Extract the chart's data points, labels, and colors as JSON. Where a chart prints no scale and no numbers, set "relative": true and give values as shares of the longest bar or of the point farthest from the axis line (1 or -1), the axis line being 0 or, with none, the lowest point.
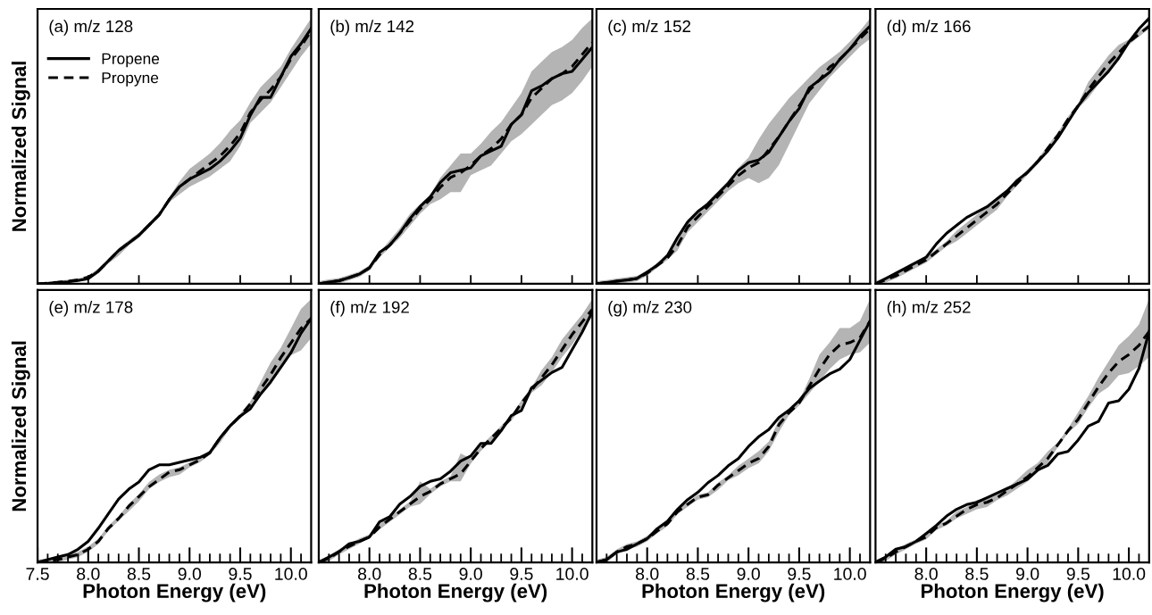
{
  "chart_data": [
    {
      "type": "line",
      "title": "(a) m/z 128",
      "ylabel": "Normalized Signal",
      "relative": true,
      "legend": "top left",
      "tick_labels": false,
      "x": [
        7.5,
        7.6,
        7.7,
        7.8,
        7.9,
        8.0,
        8.1,
        8.2,
        8.3,
        8.4,
        8.5,
        8.6,
        8.7,
        8.8,
        8.9,
        9.0,
        9.1,
        9.2,
        9.3,
        9.4,
        9.5,
        9.6,
        9.7,
        9.8,
        9.9,
        10.0,
        10.1,
        10.2
      ],
      "xlim": [
        7.5,
        10.2
      ],
      "xticks": [
        {
          "value": 8,
          "label": null
        },
        {
          "value": 8.5,
          "label": null
        },
        {
          "value": 9,
          "label": null
        },
        {
          "value": 9.5,
          "label": null
        },
        {
          "value": 10,
          "label": null
        }
      ],
      "series": [
        {
          "name": "Propene",
          "color": "#000000",
          "line_style": "solid",
          "values": [
            0,
            0.002,
            0.005,
            0.008,
            0.013,
            0.02,
            0.05,
            0.09,
            0.13,
            0.16,
            0.19,
            0.23,
            0.27,
            0.33,
            0.38,
            0.41,
            0.43,
            0.45,
            0.48,
            0.52,
            0.57,
            0.66,
            0.73,
            0.73,
            0.81,
            0.89,
            0.94,
            1.0
          ]
        },
        {
          "name": "Propyne",
          "color": "#000000",
          "line_style": "dashed",
          "values": [
            0,
            0.003,
            0.006,
            0.01,
            0.016,
            0.026,
            0.05,
            0.09,
            0.13,
            0.16,
            0.19,
            0.23,
            0.27,
            0.33,
            0.38,
            0.41,
            0.44,
            0.47,
            0.5,
            0.54,
            0.59,
            0.67,
            0.72,
            0.76,
            0.81,
            0.88,
            0.93,
            0.99
          ],
          "lower": [
            0,
            0,
            0.001,
            0.005,
            0.01,
            0.016,
            0.04,
            0.08,
            0.11,
            0.15,
            0.18,
            0.22,
            0.26,
            0.32,
            0.35,
            0.38,
            0.4,
            0.42,
            0.45,
            0.48,
            0.54,
            0.63,
            0.67,
            0.71,
            0.77,
            0.83,
            0.89,
            0.94
          ],
          "upper": [
            0.005,
            0.008,
            0.013,
            0.016,
            0.021,
            0.031,
            0.06,
            0.1,
            0.14,
            0.17,
            0.2,
            0.24,
            0.28,
            0.34,
            0.4,
            0.45,
            0.48,
            0.51,
            0.55,
            0.6,
            0.64,
            0.71,
            0.77,
            0.81,
            0.85,
            0.92,
            0.98,
            1.04
          ]
        }
      ]
    },
    {
      "type": "line",
      "title": "(b) m/z 142",
      "relative": true,
      "tick_labels": false,
      "x": [
        7.5,
        7.6,
        7.7,
        7.8,
        7.9,
        8.0,
        8.1,
        8.2,
        8.3,
        8.4,
        8.5,
        8.6,
        8.7,
        8.8,
        8.9,
        9.0,
        9.1,
        9.2,
        9.3,
        9.4,
        9.5,
        9.6,
        9.7,
        9.8,
        9.9,
        10.0,
        10.1,
        10.2
      ],
      "xlim": [
        7.5,
        10.2
      ],
      "xticks": [
        {
          "value": 8,
          "label": null
        },
        {
          "value": 8.5,
          "label": null
        },
        {
          "value": 9,
          "label": null
        },
        {
          "value": 9.5,
          "label": null
        },
        {
          "value": 10,
          "label": null
        }
      ],
      "series": [
        {
          "color": "#000000",
          "line_style": "solid",
          "values": [
            0,
            0.007,
            0.013,
            0.026,
            0.04,
            0.066,
            0.13,
            0.16,
            0.21,
            0.27,
            0.32,
            0.36,
            0.42,
            0.46,
            0.47,
            0.48,
            0.53,
            0.55,
            0.57,
            0.66,
            0.7,
            0.8,
            0.82,
            0.85,
            0.87,
            0.88,
            0.93,
            0.98
          ]
        },
        {
          "color": "#000000",
          "line_style": "dashed",
          "values": [
            0,
            0.007,
            0.013,
            0.026,
            0.04,
            0.066,
            0.12,
            0.16,
            0.21,
            0.26,
            0.31,
            0.35,
            0.4,
            0.44,
            0.46,
            0.49,
            0.53,
            0.56,
            0.6,
            0.66,
            0.7,
            0.77,
            0.81,
            0.85,
            0.87,
            0.9,
            0.95,
            1.0
          ],
          "lower": [
            0,
            0,
            0.002,
            0.015,
            0.029,
            0.055,
            0.11,
            0.15,
            0.19,
            0.24,
            0.29,
            0.33,
            0.35,
            0.38,
            0.38,
            0.45,
            0.47,
            0.49,
            0.54,
            0.59,
            0.62,
            0.66,
            0.7,
            0.74,
            0.76,
            0.79,
            0.84,
            0.9
          ],
          "upper": [
            0.011,
            0.018,
            0.024,
            0.037,
            0.051,
            0.077,
            0.13,
            0.18,
            0.23,
            0.29,
            0.33,
            0.37,
            0.44,
            0.49,
            0.54,
            0.54,
            0.58,
            0.63,
            0.67,
            0.73,
            0.79,
            0.88,
            0.92,
            0.96,
            0.98,
            1.01,
            1.06,
            1.1
          ]
        }
      ]
    },
    {
      "type": "line",
      "title": "(c) m/z 152",
      "relative": true,
      "tick_labels": false,
      "x": [
        7.5,
        7.6,
        7.7,
        7.8,
        7.9,
        8.0,
        8.1,
        8.2,
        8.3,
        8.4,
        8.5,
        8.6,
        8.7,
        8.8,
        8.9,
        9.0,
        9.1,
        9.2,
        9.3,
        9.4,
        9.5,
        9.6,
        9.7,
        9.8,
        9.9,
        10.0,
        10.1,
        10.2
      ],
      "xlim": [
        7.5,
        10.2
      ],
      "xticks": [
        {
          "value": 8,
          "label": null
        },
        {
          "value": 8.5,
          "label": null
        },
        {
          "value": 9,
          "label": null
        },
        {
          "value": 9.5,
          "label": null
        },
        {
          "value": 10,
          "label": null
        }
      ],
      "series": [
        {
          "color": "#000000",
          "line_style": "solid",
          "values": [
            0,
            0.005,
            0.01,
            0.015,
            0.021,
            0.046,
            0.072,
            0.11,
            0.18,
            0.24,
            0.28,
            0.31,
            0.35,
            0.39,
            0.44,
            0.47,
            0.48,
            0.51,
            0.57,
            0.63,
            0.68,
            0.76,
            0.79,
            0.82,
            0.87,
            0.91,
            0.96,
            1.0
          ]
        },
        {
          "color": "#000000",
          "line_style": "dashed",
          "values": [
            0,
            0.005,
            0.01,
            0.015,
            0.021,
            0.041,
            0.072,
            0.1,
            0.15,
            0.22,
            0.26,
            0.3,
            0.34,
            0.38,
            0.42,
            0.45,
            0.47,
            0.52,
            0.57,
            0.63,
            0.69,
            0.75,
            0.79,
            0.84,
            0.87,
            0.91,
            0.95,
            0.99
          ],
          "lower": [
            0,
            0,
            0,
            0.005,
            0.01,
            0.031,
            0.062,
            0.093,
            0.13,
            0.2,
            0.24,
            0.28,
            0.32,
            0.36,
            0.39,
            0.41,
            0.39,
            0.41,
            0.46,
            0.54,
            0.62,
            0.7,
            0.75,
            0.8,
            0.84,
            0.88,
            0.92,
            0.95
          ],
          "upper": [
            0.01,
            0.015,
            0.021,
            0.026,
            0.031,
            0.052,
            0.082,
            0.11,
            0.18,
            0.24,
            0.28,
            0.32,
            0.36,
            0.4,
            0.45,
            0.49,
            0.56,
            0.62,
            0.67,
            0.72,
            0.76,
            0.8,
            0.84,
            0.87,
            0.9,
            0.94,
            0.98,
            1.03
          ]
        }
      ]
    },
    {
      "type": "line",
      "title": "(d) m/z 166",
      "relative": true,
      "tick_labels": false,
      "x": [
        7.5,
        7.6,
        7.7,
        7.8,
        7.9,
        8.0,
        8.1,
        8.2,
        8.3,
        8.4,
        8.5,
        8.6,
        8.7,
        8.8,
        8.9,
        9.0,
        9.1,
        9.2,
        9.3,
        9.4,
        9.5,
        9.6,
        9.7,
        9.8,
        9.9,
        10.0,
        10.1,
        10.2
      ],
      "xlim": [
        7.5,
        10.2
      ],
      "xticks": [
        {
          "value": 8,
          "label": null
        },
        {
          "value": 8.5,
          "label": null
        },
        {
          "value": 9,
          "label": null
        },
        {
          "value": 9.5,
          "label": null
        },
        {
          "value": 10,
          "label": null
        }
      ],
      "series": [
        {
          "color": "#000000",
          "line_style": "solid",
          "values": [
            0,
            0.02,
            0.04,
            0.06,
            0.08,
            0.1,
            0.15,
            0.19,
            0.22,
            0.25,
            0.27,
            0.29,
            0.32,
            0.35,
            0.39,
            0.42,
            0.46,
            0.5,
            0.55,
            0.61,
            0.67,
            0.72,
            0.76,
            0.8,
            0.85,
            0.91,
            0.96,
            1.0
          ]
        },
        {
          "color": "#000000",
          "line_style": "dashed",
          "values": [
            0,
            0.015,
            0.03,
            0.05,
            0.07,
            0.09,
            0.12,
            0.15,
            0.18,
            0.21,
            0.24,
            0.27,
            0.3,
            0.34,
            0.38,
            0.42,
            0.46,
            0.51,
            0.56,
            0.62,
            0.67,
            0.73,
            0.78,
            0.83,
            0.87,
            0.91,
            0.94,
            0.97
          ],
          "lower": [
            0,
            0.005,
            0.02,
            0.04,
            0.06,
            0.08,
            0.11,
            0.14,
            0.16,
            0.19,
            0.22,
            0.25,
            0.28,
            0.33,
            0.37,
            0.41,
            0.45,
            0.5,
            0.55,
            0.61,
            0.66,
            0.7,
            0.75,
            0.8,
            0.84,
            0.9,
            0.93,
            0.96
          ],
          "upper": [
            0.01,
            0.025,
            0.04,
            0.06,
            0.08,
            0.1,
            0.13,
            0.16,
            0.2,
            0.23,
            0.26,
            0.29,
            0.32,
            0.35,
            0.39,
            0.43,
            0.47,
            0.52,
            0.57,
            0.63,
            0.68,
            0.76,
            0.81,
            0.86,
            0.9,
            0.92,
            0.95,
            0.98
          ]
        }
      ]
    },
    {
      "type": "line",
      "title": "(e) m/z 178",
      "xlabel": "Photon Energy (eV)",
      "ylabel": "Normalized Signal",
      "relative": true,
      "tick_labels": "x",
      "x": [
        7.5,
        7.6,
        7.7,
        7.8,
        7.9,
        8.0,
        8.1,
        8.2,
        8.3,
        8.4,
        8.5,
        8.6,
        8.7,
        8.8,
        8.9,
        9.0,
        9.1,
        9.2,
        9.3,
        9.4,
        9.5,
        9.6,
        9.7,
        9.8,
        9.9,
        10.0,
        10.1,
        10.2
      ],
      "xlim": [
        7.5,
        10.2
      ],
      "xticks": [
        {
          "value": 7.5,
          "label": "7.5"
        },
        {
          "value": 7.6,
          "label": null
        },
        {
          "value": 7.7,
          "label": null
        },
        {
          "value": 7.8,
          "label": null
        },
        {
          "value": 7.9,
          "label": null
        },
        {
          "value": 8,
          "label": "8.0"
        },
        {
          "value": 8.1,
          "label": null
        },
        {
          "value": 8.2,
          "label": null
        },
        {
          "value": 8.3,
          "label": null
        },
        {
          "value": 8.4,
          "label": null
        },
        {
          "value": 8.5,
          "label": "8.5"
        },
        {
          "value": 8.6,
          "label": null
        },
        {
          "value": 8.7,
          "label": null
        },
        {
          "value": 8.8,
          "label": null
        },
        {
          "value": 8.9,
          "label": null
        },
        {
          "value": 9,
          "label": "9.0"
        },
        {
          "value": 9.1,
          "label": null
        },
        {
          "value": 9.2,
          "label": null
        },
        {
          "value": 9.3,
          "label": null
        },
        {
          "value": 9.4,
          "label": null
        },
        {
          "value": 9.5,
          "label": "9.5"
        },
        {
          "value": 9.6,
          "label": null
        },
        {
          "value": 9.7,
          "label": null
        },
        {
          "value": 9.8,
          "label": null
        },
        {
          "value": 9.9,
          "label": null
        },
        {
          "value": 10,
          "label": "10.0"
        },
        {
          "value": 10.1,
          "label": null
        }
      ],
      "series": [
        {
          "color": "#000000",
          "line_style": "solid",
          "values": [
            0,
            0.011,
            0.022,
            0.032,
            0.054,
            0.086,
            0.14,
            0.2,
            0.26,
            0.3,
            0.33,
            0.38,
            0.4,
            0.4,
            0.41,
            0.42,
            0.43,
            0.45,
            0.51,
            0.56,
            0.6,
            0.63,
            0.69,
            0.74,
            0.8,
            0.86,
            0.94,
            1.0
          ]
        },
        {
          "color": "#000000",
          "line_style": "dashed",
          "values": [
            0,
            0.005,
            0.011,
            0.022,
            0.032,
            0.054,
            0.086,
            0.14,
            0.18,
            0.23,
            0.27,
            0.31,
            0.34,
            0.37,
            0.38,
            0.4,
            0.42,
            0.45,
            0.51,
            0.56,
            0.6,
            0.65,
            0.71,
            0.77,
            0.84,
            0.9,
            0.96,
            1.0
          ],
          "lower": [
            0,
            0,
            0,
            0.011,
            0.022,
            0.043,
            0.075,
            0.13,
            0.17,
            0.21,
            0.25,
            0.3,
            0.33,
            0.35,
            0.36,
            0.39,
            0.41,
            0.44,
            0.49,
            0.55,
            0.59,
            0.63,
            0.68,
            0.73,
            0.8,
            0.85,
            0.87,
            0.92
          ],
          "upper": [
            0.011,
            0.016,
            0.022,
            0.032,
            0.043,
            0.065,
            0.097,
            0.15,
            0.19,
            0.24,
            0.28,
            0.33,
            0.36,
            0.38,
            0.39,
            0.41,
            0.43,
            0.46,
            0.52,
            0.57,
            0.61,
            0.66,
            0.74,
            0.82,
            0.88,
            0.96,
            1.04,
            1.08
          ]
        }
      ]
    },
    {
      "type": "line",
      "title": "(f) m/z 192",
      "xlabel": "Photon Energy (eV)",
      "relative": true,
      "tick_labels": "x",
      "x": [
        7.5,
        7.6,
        7.7,
        7.8,
        7.9,
        8.0,
        8.1,
        8.2,
        8.3,
        8.4,
        8.5,
        8.6,
        8.7,
        8.8,
        8.9,
        9.0,
        9.1,
        9.2,
        9.3,
        9.4,
        9.5,
        9.6,
        9.7,
        9.8,
        9.9,
        10.0,
        10.1,
        10.2
      ],
      "xlim": [
        7.5,
        10.2
      ],
      "xticks": [
        {
          "value": 7.6,
          "label": null
        },
        {
          "value": 7.7,
          "label": null
        },
        {
          "value": 7.8,
          "label": null
        },
        {
          "value": 7.9,
          "label": null
        },
        {
          "value": 8,
          "label": "8.0"
        },
        {
          "value": 8.1,
          "label": null
        },
        {
          "value": 8.2,
          "label": null
        },
        {
          "value": 8.3,
          "label": null
        },
        {
          "value": 8.4,
          "label": null
        },
        {
          "value": 8.5,
          "label": "8.5"
        },
        {
          "value": 8.6,
          "label": null
        },
        {
          "value": 8.7,
          "label": null
        },
        {
          "value": 8.8,
          "label": null
        },
        {
          "value": 8.9,
          "label": null
        },
        {
          "value": 9,
          "label": "9.0"
        },
        {
          "value": 9.1,
          "label": null
        },
        {
          "value": 9.2,
          "label": null
        },
        {
          "value": 9.3,
          "label": null
        },
        {
          "value": 9.4,
          "label": null
        },
        {
          "value": 9.5,
          "label": "9.5"
        },
        {
          "value": 9.6,
          "label": null
        },
        {
          "value": 9.7,
          "label": null
        },
        {
          "value": 9.8,
          "label": null
        },
        {
          "value": 9.9,
          "label": null
        },
        {
          "value": 10,
          "label": "10.0"
        },
        {
          "value": 10.1,
          "label": null
        }
      ],
      "series": [
        {
          "color": "#000000",
          "line_style": "solid",
          "values": [
            0,
            0.021,
            0.042,
            0.073,
            0.083,
            0.1,
            0.16,
            0.18,
            0.23,
            0.26,
            0.3,
            0.32,
            0.33,
            0.36,
            0.4,
            0.42,
            0.47,
            0.47,
            0.52,
            0.58,
            0.6,
            0.69,
            0.72,
            0.75,
            0.77,
            0.84,
            0.91,
            0.99
          ]
        },
        {
          "color": "#000000",
          "line_style": "dashed",
          "values": [
            0,
            0.016,
            0.042,
            0.063,
            0.083,
            0.1,
            0.14,
            0.17,
            0.2,
            0.23,
            0.26,
            0.28,
            0.31,
            0.33,
            0.35,
            0.4,
            0.45,
            0.49,
            0.53,
            0.57,
            0.63,
            0.68,
            0.73,
            0.78,
            0.84,
            0.9,
            0.95,
            1.0
          ],
          "lower": [
            0,
            0.005,
            0.031,
            0.052,
            0.073,
            0.094,
            0.13,
            0.16,
            0.19,
            0.22,
            0.23,
            0.27,
            0.3,
            0.32,
            0.32,
            0.39,
            0.44,
            0.48,
            0.52,
            0.56,
            0.61,
            0.67,
            0.7,
            0.75,
            0.81,
            0.86,
            0.92,
            0.97
          ],
          "upper": [
            0.01,
            0.026,
            0.052,
            0.073,
            0.094,
            0.11,
            0.15,
            0.18,
            0.21,
            0.24,
            0.32,
            0.29,
            0.32,
            0.34,
            0.43,
            0.41,
            0.46,
            0.5,
            0.54,
            0.58,
            0.64,
            0.69,
            0.76,
            0.81,
            0.88,
            0.93,
            0.98,
            1.04
          ]
        }
      ]
    },
    {
      "type": "line",
      "title": "(g) m/z 230",
      "xlabel": "Photon Energy (eV)",
      "relative": true,
      "tick_labels": "x",
      "x": [
        7.5,
        7.6,
        7.7,
        7.8,
        7.9,
        8.0,
        8.1,
        8.2,
        8.3,
        8.4,
        8.5,
        8.6,
        8.7,
        8.8,
        8.9,
        9.0,
        9.1,
        9.2,
        9.3,
        9.4,
        9.5,
        9.6,
        9.7,
        9.8,
        9.9,
        10.0,
        10.1,
        10.2
      ],
      "xlim": [
        7.5,
        10.2
      ],
      "xticks": [
        {
          "value": 7.6,
          "label": null
        },
        {
          "value": 7.7,
          "label": null
        },
        {
          "value": 7.8,
          "label": null
        },
        {
          "value": 7.9,
          "label": null
        },
        {
          "value": 8,
          "label": "8.0"
        },
        {
          "value": 8.1,
          "label": null
        },
        {
          "value": 8.2,
          "label": null
        },
        {
          "value": 8.3,
          "label": null
        },
        {
          "value": 8.4,
          "label": null
        },
        {
          "value": 8.5,
          "label": "8.5"
        },
        {
          "value": 8.6,
          "label": null
        },
        {
          "value": 8.7,
          "label": null
        },
        {
          "value": 8.8,
          "label": null
        },
        {
          "value": 8.9,
          "label": null
        },
        {
          "value": 9,
          "label": "9.0"
        },
        {
          "value": 9.1,
          "label": null
        },
        {
          "value": 9.2,
          "label": null
        },
        {
          "value": 9.3,
          "label": null
        },
        {
          "value": 9.4,
          "label": null
        },
        {
          "value": 9.5,
          "label": "9.5"
        },
        {
          "value": 9.6,
          "label": null
        },
        {
          "value": 9.7,
          "label": null
        },
        {
          "value": 9.8,
          "label": null
        },
        {
          "value": 9.9,
          "label": null
        },
        {
          "value": 10,
          "label": "10.0"
        },
        {
          "value": 10.1,
          "label": null
        }
      ],
      "series": [
        {
          "color": "#000000",
          "line_style": "solid",
          "values": [
            0,
            0.011,
            0.043,
            0.054,
            0.076,
            0.098,
            0.14,
            0.17,
            0.22,
            0.26,
            0.29,
            0.33,
            0.36,
            0.4,
            0.43,
            0.48,
            0.52,
            0.55,
            0.6,
            0.63,
            0.67,
            0.72,
            0.75,
            0.78,
            0.8,
            0.84,
            0.92,
            1.0
          ]
        },
        {
          "color": "#000000",
          "line_style": "dashed",
          "values": [
            0,
            0.011,
            0.043,
            0.065,
            0.076,
            0.098,
            0.13,
            0.16,
            0.21,
            0.24,
            0.27,
            0.28,
            0.32,
            0.35,
            0.38,
            0.41,
            0.43,
            0.48,
            0.57,
            0.62,
            0.66,
            0.73,
            0.8,
            0.86,
            0.9,
            0.91,
            0.93,
            1.0
          ],
          "lower": [
            0,
            0,
            0.033,
            0.054,
            0.065,
            0.087,
            0.12,
            0.15,
            0.2,
            0.23,
            0.26,
            0.27,
            0.3,
            0.34,
            0.36,
            0.39,
            0.41,
            0.46,
            0.54,
            0.61,
            0.65,
            0.7,
            0.75,
            0.8,
            0.84,
            0.86,
            0.87,
            0.91
          ],
          "upper": [
            0.011,
            0.022,
            0.054,
            0.076,
            0.087,
            0.11,
            0.14,
            0.17,
            0.22,
            0.25,
            0.28,
            0.29,
            0.33,
            0.36,
            0.4,
            0.43,
            0.46,
            0.5,
            0.59,
            0.63,
            0.67,
            0.76,
            0.86,
            0.91,
            0.97,
            0.97,
            1.0,
            1.09
          ]
        }
      ]
    },
    {
      "type": "line",
      "title": "(h) m/z 252",
      "xlabel": "Photon Energy (eV)",
      "relative": true,
      "tick_labels": "x",
      "x": [
        7.5,
        7.6,
        7.7,
        7.8,
        7.9,
        8.0,
        8.1,
        8.2,
        8.3,
        8.4,
        8.5,
        8.6,
        8.7,
        8.8,
        8.9,
        9.0,
        9.1,
        9.2,
        9.3,
        9.4,
        9.5,
        9.6,
        9.7,
        9.8,
        9.9,
        10.0,
        10.1,
        10.2
      ],
      "xlim": [
        7.5,
        10.2
      ],
      "xticks": [
        {
          "value": 7.6,
          "label": null
        },
        {
          "value": 7.7,
          "label": null
        },
        {
          "value": 7.8,
          "label": null
        },
        {
          "value": 7.9,
          "label": null
        },
        {
          "value": 8,
          "label": "8.0"
        },
        {
          "value": 8.1,
          "label": null
        },
        {
          "value": 8.2,
          "label": null
        },
        {
          "value": 8.3,
          "label": null
        },
        {
          "value": 8.4,
          "label": null
        },
        {
          "value": 8.5,
          "label": "8.5"
        },
        {
          "value": 8.6,
          "label": null
        },
        {
          "value": 8.7,
          "label": null
        },
        {
          "value": 8.8,
          "label": null
        },
        {
          "value": 8.9,
          "label": null
        },
        {
          "value": 9,
          "label": "9.0"
        },
        {
          "value": 9.1,
          "label": null
        },
        {
          "value": 9.2,
          "label": null
        },
        {
          "value": 9.3,
          "label": null
        },
        {
          "value": 9.4,
          "label": null
        },
        {
          "value": 9.5,
          "label": "9.5"
        },
        {
          "value": 9.6,
          "label": null
        },
        {
          "value": 9.7,
          "label": null
        },
        {
          "value": 9.8,
          "label": null
        },
        {
          "value": 9.9,
          "label": null
        },
        {
          "value": 10,
          "label": "10.0"
        },
        {
          "value": 10.1,
          "label": null
        }
      ],
      "series": [
        {
          "color": "#000000",
          "line_style": "solid",
          "values": [
            0,
            0.023,
            0.057,
            0.068,
            0.091,
            0.125,
            0.16,
            0.2,
            0.23,
            0.25,
            0.26,
            0.28,
            0.3,
            0.32,
            0.34,
            0.36,
            0.4,
            0.42,
            0.47,
            0.48,
            0.53,
            0.59,
            0.61,
            0.69,
            0.7,
            0.75,
            0.84,
            1.0
          ]
        },
        {
          "color": "#000000",
          "line_style": "dashed",
          "values": [
            0,
            0.017,
            0.045,
            0.068,
            0.091,
            0.11,
            0.15,
            0.17,
            0.2,
            0.23,
            0.25,
            0.26,
            0.28,
            0.31,
            0.34,
            0.37,
            0.41,
            0.45,
            0.51,
            0.57,
            0.62,
            0.69,
            0.76,
            0.82,
            0.87,
            0.9,
            0.94,
            1.0
          ],
          "lower": [
            0,
            0.006,
            0.034,
            0.057,
            0.08,
            0.1,
            0.14,
            0.16,
            0.19,
            0.21,
            0.23,
            0.24,
            0.27,
            0.29,
            0.32,
            0.35,
            0.39,
            0.43,
            0.5,
            0.56,
            0.6,
            0.67,
            0.73,
            0.76,
            0.81,
            0.82,
            0.85,
            0.89
          ],
          "upper": [
            0.011,
            0.028,
            0.057,
            0.08,
            0.1,
            0.125,
            0.16,
            0.18,
            0.22,
            0.24,
            0.27,
            0.28,
            0.3,
            0.32,
            0.36,
            0.4,
            0.43,
            0.48,
            0.52,
            0.58,
            0.65,
            0.72,
            0.8,
            0.87,
            0.94,
            0.98,
            1.03,
            1.14
          ]
        }
      ]
    }
  ]
}
